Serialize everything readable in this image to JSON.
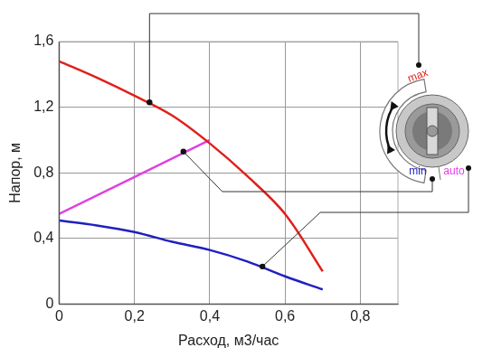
{
  "chart_data": {
    "type": "line",
    "x_label": "Расход, м3/час",
    "y_label": "Напор, м",
    "xlim": [
      0,
      0.9
    ],
    "xticks": [
      0,
      {
        "value": 0.2,
        "label": "0,2"
      },
      {
        "value": 0.4,
        "label": "0,4"
      },
      {
        "value": 0.6,
        "label": "0,6"
      },
      {
        "value": 0.8,
        "label": "0,8"
      }
    ],
    "ylim": [
      0,
      1.6
    ],
    "yticks": [
      0,
      {
        "value": 0.4,
        "label": "0,4"
      },
      {
        "value": 0.8,
        "label": "0,8"
      },
      {
        "value": 1.2,
        "label": "1,2"
      },
      {
        "value": 1.6,
        "label": "1,6"
      }
    ],
    "grid": true,
    "series": [
      {
        "name": "max",
        "color": "#e0201b",
        "x": [
          0,
          0.1,
          0.2,
          0.3,
          0.4,
          0.5,
          0.6,
          0.7
        ],
        "values": [
          1.48,
          1.38,
          1.27,
          1.15,
          0.98,
          0.78,
          0.55,
          0.2
        ],
        "point": {
          "x": 0.24,
          "y": 1.23
        }
      },
      {
        "name": "auto",
        "color": "#e040e0",
        "x": [
          0,
          0.4
        ],
        "values": [
          0.55,
          1.0
        ],
        "point": {
          "x": 0.33,
          "y": 0.93
        }
      },
      {
        "name": "min",
        "color": "#2020c0",
        "x": [
          0,
          0.1,
          0.2,
          0.3,
          0.4,
          0.5,
          0.6,
          0.7
        ],
        "values": [
          0.51,
          0.48,
          0.44,
          0.38,
          0.33,
          0.26,
          0.17,
          0.09
        ],
        "point": {
          "x": 0.54,
          "y": 0.23
        }
      }
    ]
  }
}
